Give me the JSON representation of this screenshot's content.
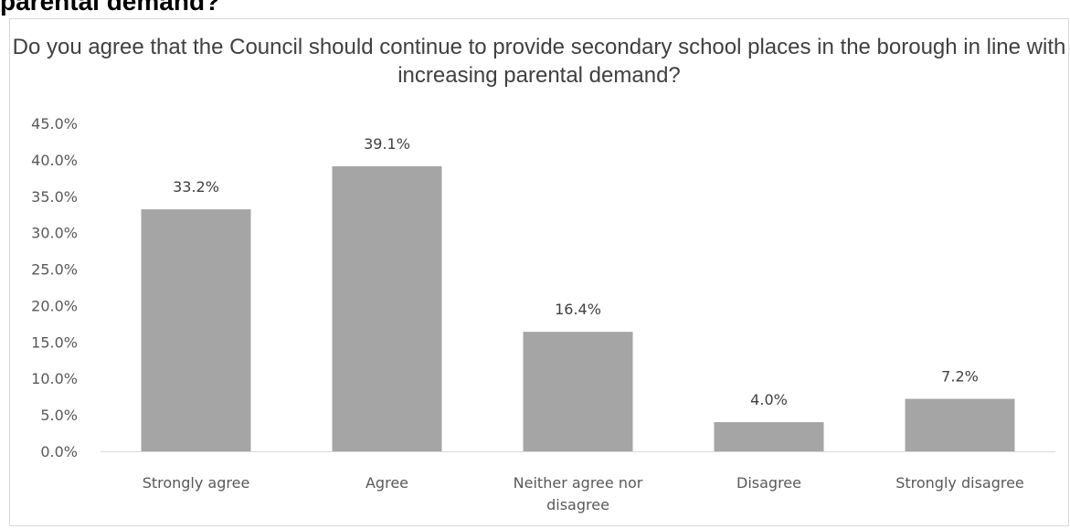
{
  "page": {
    "heading": "parental demand?"
  },
  "chart_data": {
    "type": "bar",
    "title": "Do you agree that the Council should continue to provide secondary school places in the borough in line with increasing parental demand?",
    "categories": [
      "Strongly agree",
      "Agree",
      "Neither agree nor disagree",
      "Disagree",
      "Strongly disagree"
    ],
    "values": [
      33.2,
      39.1,
      16.4,
      4.0,
      7.2
    ],
    "data_labels": [
      "33.2%",
      "39.1%",
      "16.4%",
      "4.0%",
      "7.2%"
    ],
    "ylim": [
      0,
      45
    ],
    "y_ticks": [
      0,
      5,
      10,
      15,
      20,
      25,
      30,
      35,
      40,
      45
    ],
    "y_tick_labels": [
      "0.0%",
      "5.0%",
      "10.0%",
      "15.0%",
      "20.0%",
      "25.0%",
      "30.0%",
      "35.0%",
      "40.0%",
      "45.0%"
    ],
    "xlabel": "",
    "ylabel": "",
    "grid": false,
    "legend": "none",
    "colors": {
      "bar": "#a5a5a5",
      "axis": "#d9d9d9",
      "text": "#595959"
    }
  }
}
